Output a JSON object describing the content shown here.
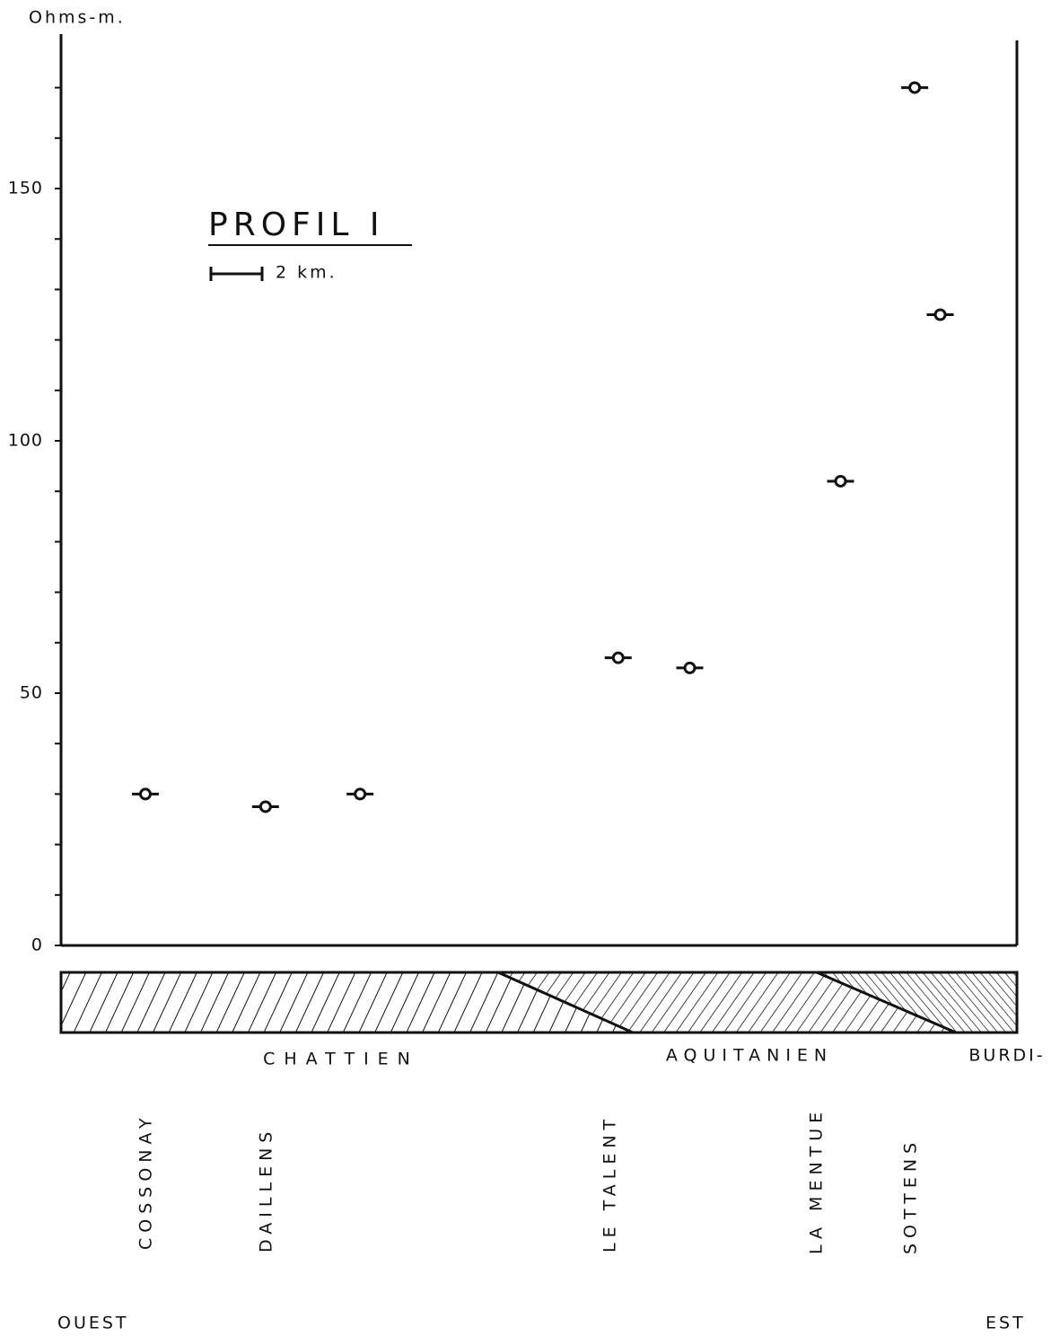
{
  "chart_data": {
    "type": "scatter",
    "title": "PROFIL I",
    "scale_label": "2 km.",
    "y_label": "Ohms-m.",
    "x": [
      3.3,
      8.0,
      11.7,
      21.8,
      24.6,
      30.5,
      33.4,
      34.4
    ],
    "values": [
      30,
      27.5,
      30,
      57,
      55,
      92,
      170,
      125
    ],
    "color": "#111111",
    "xlim": [
      0,
      37.4
    ],
    "ylim": [
      0,
      180
    ],
    "yticks": [
      0,
      50,
      100,
      150
    ],
    "minor_yticks": [
      10,
      20,
      30,
      40,
      60,
      70,
      80,
      90,
      110,
      120,
      130,
      140,
      160,
      170
    ],
    "strata": [
      "CHATTIEN",
      "AQUITANIEN",
      "BURDI-"
    ],
    "locations": [
      "COSSONAY",
      "DAILLENS",
      "LE TALENT",
      "LA MENTUE",
      "SOTTENS"
    ],
    "west_label": "OUEST",
    "east_label": "EST"
  }
}
